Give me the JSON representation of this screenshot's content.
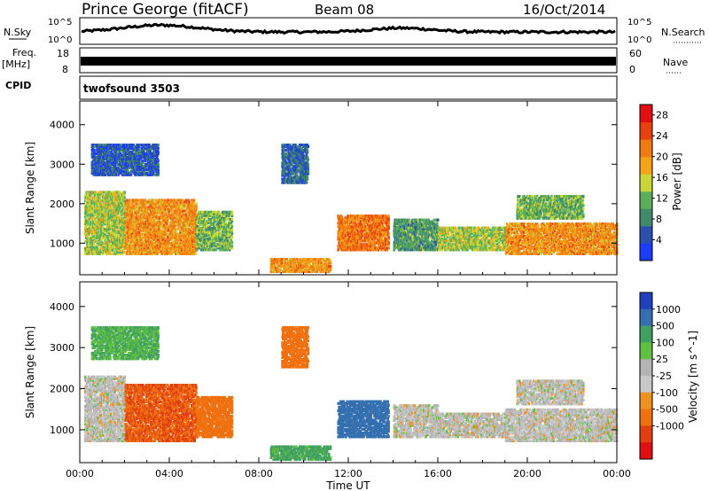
{
  "header": {
    "title": "Prince George (fitACF)",
    "beam": "Beam 08",
    "date": "16/Oct/2014"
  },
  "top_panels": {
    "nsky_label": "N.Sky",
    "nsearch_label": "N.Search",
    "noise_ticks": [
      "10^5",
      "10^0"
    ],
    "freq_label": "Freq.",
    "freq_unit": "[MHz]",
    "freq_ticks": [
      "18",
      "8"
    ],
    "nave_label": "Nave",
    "nave_ticks": [
      "60",
      "0"
    ],
    "cpid_label": "CPID",
    "cpid_value": "twofsound 3503"
  },
  "colors": {
    "power_scale": [
      "#1a3cff",
      "#2a4fb0",
      "#3f8a6a",
      "#5aae5a",
      "#c9d63a",
      "#f3a21a",
      "#f07a12",
      "#e8420c",
      "#e01010"
    ],
    "velocity_scale": [
      "#2040c0",
      "#3470b0",
      "#40a060",
      "#60c040",
      "#b4b4b4",
      "#c8c8c8",
      "#f09020",
      "#f07010",
      "#e04010",
      "#e01010"
    ]
  },
  "chart_data": [
    {
      "type": "heatmap",
      "name": "power",
      "ylabel": "Slant Range [km]",
      "xlabel": "Time UT",
      "x_ticks": [
        "00:00",
        "04:00",
        "08:00",
        "12:00",
        "16:00",
        "20:00",
        "00:00"
      ],
      "x_range_hours": [
        0,
        24
      ],
      "y_ticks": [
        "1000",
        "2000",
        "3000",
        "4000"
      ],
      "y_tick_values": [
        1000,
        2000,
        3000,
        4000
      ],
      "y_range_km": [
        200,
        4600
      ],
      "colorbar_label": "Power [dB]",
      "colorbar_ticks": [
        "4",
        "8",
        "12",
        "16",
        "20",
        "24",
        "28"
      ],
      "colorbar_range": [
        0,
        30
      ],
      "echo_regions": [
        {
          "t0": 0.2,
          "t1": 2.0,
          "r0": 700,
          "r1": 2300,
          "v": 14
        },
        {
          "t0": 2.0,
          "t1": 5.2,
          "r0": 700,
          "r1": 2100,
          "v": 20
        },
        {
          "t0": 5.2,
          "t1": 6.8,
          "r0": 800,
          "r1": 1800,
          "v": 12
        },
        {
          "t0": 8.5,
          "t1": 11.2,
          "r0": 250,
          "r1": 600,
          "v": 20
        },
        {
          "t0": 11.5,
          "t1": 13.8,
          "r0": 800,
          "r1": 1700,
          "v": 22
        },
        {
          "t0": 14.0,
          "t1": 16.0,
          "r0": 800,
          "r1": 1600,
          "v": 10
        },
        {
          "t0": 16.0,
          "t1": 19.0,
          "r0": 800,
          "r1": 1400,
          "v": 14
        },
        {
          "t0": 19.0,
          "t1": 24.0,
          "r0": 700,
          "r1": 1500,
          "v": 20
        },
        {
          "t0": 19.5,
          "t1": 22.5,
          "r0": 1600,
          "r1": 2200,
          "v": 12
        },
        {
          "t0": 9.0,
          "t1": 10.2,
          "r0": 2500,
          "r1": 3500,
          "v": 6
        },
        {
          "t0": 0.5,
          "t1": 3.5,
          "r0": 2700,
          "r1": 3500,
          "v": 5
        }
      ]
    },
    {
      "type": "heatmap",
      "name": "velocity",
      "ylabel": "Slant Range [km]",
      "xlabel": "Time UT",
      "x_ticks": [
        "00:00",
        "04:00",
        "08:00",
        "12:00",
        "16:00",
        "20:00",
        "00:00"
      ],
      "x_range_hours": [
        0,
        24
      ],
      "y_ticks": [
        "1000",
        "2000",
        "3000",
        "4000"
      ],
      "y_tick_values": [
        1000,
        2000,
        3000,
        4000
      ],
      "y_range_km": [
        200,
        4600
      ],
      "colorbar_label": "Velocity [m s^-1]",
      "colorbar_ticks": [
        "1000",
        "500",
        "100",
        "25",
        "-25",
        "-100",
        "-500",
        "-1000"
      ],
      "echo_regions": [
        {
          "t0": 0.2,
          "t1": 2.0,
          "r0": 700,
          "r1": 2300,
          "v": 0
        },
        {
          "t0": 2.0,
          "t1": 5.2,
          "r0": 700,
          "r1": 2100,
          "v": -300
        },
        {
          "t0": 5.2,
          "t1": 6.8,
          "r0": 800,
          "r1": 1800,
          "v": -200
        },
        {
          "t0": 8.5,
          "t1": 11.2,
          "r0": 250,
          "r1": 600,
          "v": 80
        },
        {
          "t0": 11.5,
          "t1": 13.8,
          "r0": 800,
          "r1": 1700,
          "v": 400
        },
        {
          "t0": 14.0,
          "t1": 16.0,
          "r0": 800,
          "r1": 1600,
          "v": 0
        },
        {
          "t0": 16.0,
          "t1": 19.0,
          "r0": 800,
          "r1": 1400,
          "v": 0
        },
        {
          "t0": 19.0,
          "t1": 24.0,
          "r0": 700,
          "r1": 1500,
          "v": 0
        },
        {
          "t0": 19.5,
          "t1": 22.5,
          "r0": 1600,
          "r1": 2200,
          "v": 0
        },
        {
          "t0": 9.0,
          "t1": 10.2,
          "r0": 2500,
          "r1": 3500,
          "v": -150
        },
        {
          "t0": 0.5,
          "t1": 3.5,
          "r0": 2700,
          "r1": 3500,
          "v": 60
        }
      ]
    }
  ]
}
